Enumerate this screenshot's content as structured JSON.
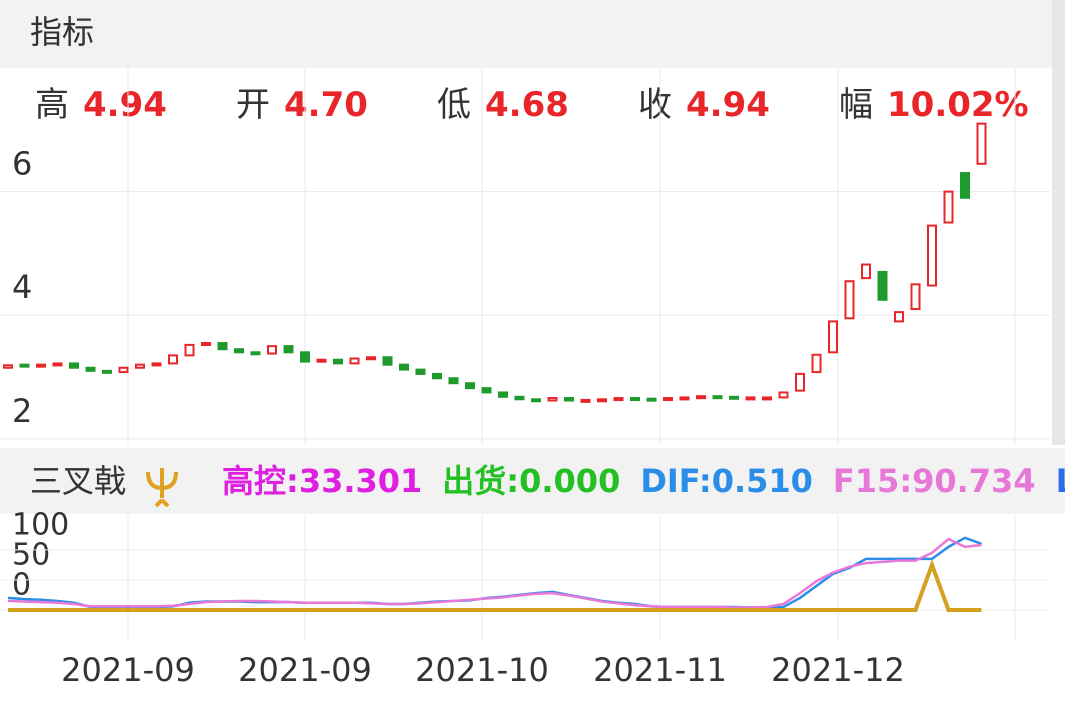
{
  "header": {
    "title": "指标"
  },
  "quote": [
    {
      "label": "高",
      "value": "4.94"
    },
    {
      "label": "开",
      "value": "4.70"
    },
    {
      "label": "低",
      "value": "4.68"
    },
    {
      "label": "收",
      "value": "4.94"
    },
    {
      "label": "幅",
      "value": "10.02%"
    }
  ],
  "price_chart": {
    "type": "candlestick",
    "ylim": [
      1.9,
      8
    ],
    "yticks": [
      2,
      4,
      6
    ],
    "up_color": "#e8262a",
    "down_color": "#1f9a2c",
    "open": [
      3.15,
      3.2,
      3.17,
      3.2,
      3.22,
      3.15,
      3.1,
      3.08,
      3.15,
      3.2,
      3.22,
      3.35,
      3.52,
      3.55,
      3.45,
      3.4,
      3.38,
      3.5,
      3.4,
      3.25,
      3.28,
      3.22,
      3.3,
      3.32,
      3.2,
      3.12,
      3.05,
      2.98,
      2.9,
      2.82,
      2.75,
      2.68,
      2.64,
      2.62,
      2.66,
      2.62,
      2.63,
      2.64,
      2.66,
      2.65,
      2.64,
      2.66,
      2.67,
      2.69,
      2.68,
      2.66,
      2.67,
      2.67,
      2.78,
      3.08,
      3.4,
      3.95,
      4.6,
      4.7,
      3.9,
      4.1,
      4.48,
      5.5,
      6.3,
      6.45
    ],
    "close": [
      3.19,
      3.17,
      3.2,
      3.22,
      3.15,
      3.1,
      3.08,
      3.15,
      3.2,
      3.22,
      3.35,
      3.52,
      3.55,
      3.45,
      3.4,
      3.38,
      3.5,
      3.4,
      3.25,
      3.28,
      3.22,
      3.3,
      3.32,
      3.2,
      3.12,
      3.05,
      2.98,
      2.9,
      2.82,
      2.75,
      2.68,
      2.64,
      2.62,
      2.66,
      2.62,
      2.63,
      2.64,
      2.66,
      2.65,
      2.64,
      2.66,
      2.67,
      2.69,
      2.68,
      2.66,
      2.67,
      2.67,
      2.75,
      3.05,
      3.36,
      3.9,
      4.55,
      4.82,
      4.25,
      4.05,
      4.5,
      5.45,
      6.0,
      5.9,
      7.1
    ]
  },
  "indicator": {
    "name": "三叉戟",
    "ylim": [
      -50,
      158
    ],
    "yticks": [
      0,
      50,
      100
    ],
    "legend": [
      {
        "label": "高控:",
        "value": "33.301",
        "color": "#e020e0"
      },
      {
        "label": "出货:",
        "value": "0.000",
        "color": "#22c022"
      },
      {
        "label": "DIF:",
        "value": "0.510",
        "color": "#2a8ee8"
      },
      {
        "label": "F15:",
        "value": "90.734",
        "color": "#e878d8"
      },
      {
        "label": "L",
        "color": "#2a6ee8"
      }
    ],
    "series": [
      {
        "color": "#2a8ee8",
        "values": [
          20,
          18,
          17,
          15,
          12,
          5,
          5,
          5,
          5,
          5,
          6,
          12,
          14,
          14,
          14,
          13,
          13,
          13,
          12,
          12,
          12,
          12,
          12,
          10,
          10,
          12,
          14,
          15,
          16,
          20,
          22,
          25,
          28,
          30,
          25,
          20,
          15,
          12,
          10,
          6,
          5,
          5,
          5,
          5,
          5,
          4,
          4,
          5,
          20,
          40,
          60,
          70,
          85,
          85,
          85,
          85,
          85,
          105,
          120,
          110
        ]
      },
      {
        "color": "#e878d8",
        "values": [
          15,
          14,
          13,
          12,
          10,
          6,
          6,
          6,
          6,
          6,
          7,
          10,
          13,
          14,
          15,
          15,
          14,
          13,
          12,
          12,
          12,
          12,
          11,
          10,
          10,
          11,
          13,
          15,
          17,
          19,
          21,
          24,
          27,
          28,
          24,
          19,
          14,
          11,
          8,
          6,
          5,
          5,
          5,
          5,
          4,
          4,
          5,
          10,
          28,
          48,
          62,
          72,
          78,
          80,
          82,
          82,
          95,
          118,
          105,
          108
        ]
      },
      {
        "color": "#d4a020",
        "values": [
          0,
          0,
          0,
          0,
          0,
          0,
          0,
          0,
          0,
          0,
          0,
          0,
          0,
          0,
          0,
          0,
          0,
          0,
          0,
          0,
          0,
          0,
          0,
          0,
          0,
          0,
          0,
          0,
          0,
          0,
          0,
          0,
          0,
          0,
          0,
          0,
          0,
          0,
          0,
          0,
          0,
          0,
          0,
          0,
          0,
          0,
          0,
          0,
          0,
          0,
          0,
          0,
          0,
          0,
          0,
          0,
          75,
          0,
          0,
          0
        ]
      }
    ]
  },
  "x_labels": [
    "2021-09",
    "2021-09",
    "2021-10",
    "2021-11",
    "2021-12"
  ]
}
